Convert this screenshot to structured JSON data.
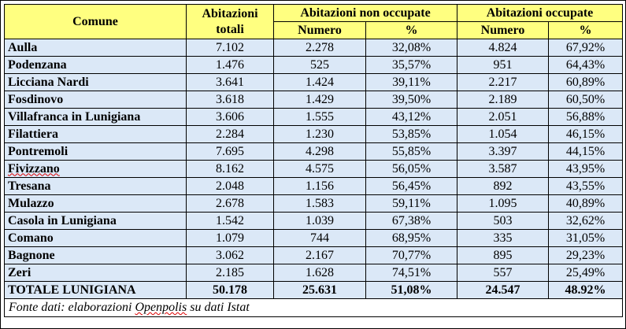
{
  "header": {
    "comune": "Comune",
    "abitazioni_totali_line1": "Abitazioni",
    "abitazioni_totali_line2": "totali",
    "non_occupate": "Abitazioni non occupate",
    "occupate": "Abitazioni occupate",
    "numero": "Numero",
    "percent": "%"
  },
  "rows": [
    {
      "comune": "Aulla",
      "totali": "7.102",
      "non_num": "2.278",
      "non_pct": "32,08%",
      "occ_num": "4.824",
      "occ_pct": "67,92%"
    },
    {
      "comune": "Podenzana",
      "totali": "1.476",
      "non_num": "525",
      "non_pct": "35,57%",
      "occ_num": "951",
      "occ_pct": "64,43%"
    },
    {
      "comune": "Licciana Nardi",
      "totali": "3.641",
      "non_num": "1.424",
      "non_pct": "39,11%",
      "occ_num": "2.217",
      "occ_pct": "60,89%"
    },
    {
      "comune": "Fosdinovo",
      "totali": "3.618",
      "non_num": "1.429",
      "non_pct": "39,50%",
      "occ_num": "2.189",
      "occ_pct": "60,50%"
    },
    {
      "comune": "Villafranca in Lunigiana",
      "totali": "3.606",
      "non_num": "1.555",
      "non_pct": "43,12%",
      "occ_num": "2.051",
      "occ_pct": "56,88%"
    },
    {
      "comune": "Filattiera",
      "totali": "2.284",
      "non_num": "1.230",
      "non_pct": "53,85%",
      "occ_num": "1.054",
      "occ_pct": "46,15%"
    },
    {
      "comune": "Pontremoli",
      "totali": "7.695",
      "non_num": "4.298",
      "non_pct": "55,85%",
      "occ_num": "3.397",
      "occ_pct": "44,15%"
    },
    {
      "comune": "Fivizzano",
      "totali": "8.162",
      "non_num": "4.575",
      "non_pct": "56,05%",
      "occ_num": "3.587",
      "occ_pct": "43,95%"
    },
    {
      "comune": "Tresana",
      "totali": "2.048",
      "non_num": "1.156",
      "non_pct": "56,45%",
      "occ_num": "892",
      "occ_pct": "43,55%"
    },
    {
      "comune": "Mulazzo",
      "totali": "2.678",
      "non_num": "1.583",
      "non_pct": "59,11%",
      "occ_num": "1.095",
      "occ_pct": "40,89%"
    },
    {
      "comune": "Casola in Lunigiana",
      "totali": "1.542",
      "non_num": "1.039",
      "non_pct": "67,38%",
      "occ_num": "503",
      "occ_pct": "32,62%"
    },
    {
      "comune": "Comano",
      "totali": "1.079",
      "non_num": "744",
      "non_pct": "68,95%",
      "occ_num": "335",
      "occ_pct": "31,05%"
    },
    {
      "comune": "Bagnone",
      "totali": "3.062",
      "non_num": "2.167",
      "non_pct": "70,77%",
      "occ_num": "895",
      "occ_pct": "29,23%"
    },
    {
      "comune": "Zeri",
      "totali": "2.185",
      "non_num": "1.628",
      "non_pct": "74,51%",
      "occ_num": "557",
      "occ_pct": "25,49%"
    }
  ],
  "total": {
    "comune": "TOTALE LUNIGIANA",
    "totali": "50.178",
    "non_num": "25.631",
    "non_pct": "51,08%",
    "occ_num": "24.547",
    "occ_pct": "48.92%"
  },
  "footer": {
    "prefix": "Fonte dati: elaborazioni ",
    "openpolis": "Openpolis",
    "suffix": " su dati Istat"
  },
  "colors": {
    "header_bg": "#ffff80",
    "body_bg": "#dbe8f7"
  }
}
